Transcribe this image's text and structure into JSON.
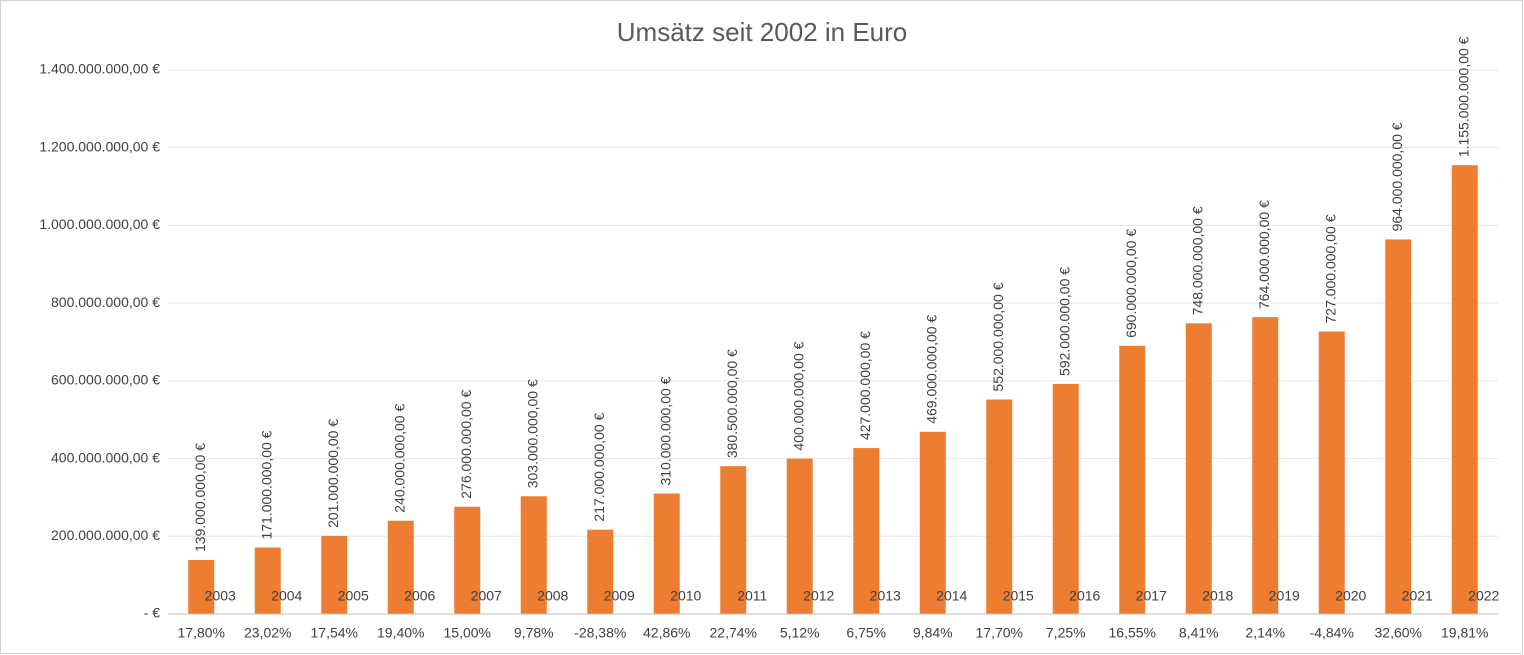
{
  "chart_data": {
    "type": "bar",
    "title": "Umsätz seit 2002 in Euro",
    "categories": [
      "2003",
      "2004",
      "2005",
      "2006",
      "2007",
      "2008",
      "2009",
      "2010",
      "2011",
      "2012",
      "2013",
      "2014",
      "2015",
      "2016",
      "2017",
      "2018",
      "2019",
      "2020",
      "2021",
      "2022"
    ],
    "sub_categories": [
      "17,80%",
      "23,02%",
      "17,54%",
      "19,40%",
      "15,00%",
      "9,78%",
      "-28,38%",
      "42,86%",
      "22,74%",
      "5,12%",
      "6,75%",
      "9,84%",
      "17,70%",
      "7,25%",
      "16,55%",
      "8,41%",
      "2,14%",
      "-4,84%",
      "32,60%",
      "19,81%"
    ],
    "values": [
      139000000,
      171000000,
      201000000,
      240000000,
      276000000,
      303000000,
      217000000,
      310000000,
      380500000,
      400000000,
      427000000,
      469000000,
      552000000,
      592000000,
      690000000,
      748000000,
      764000000,
      727000000,
      964000000,
      1155000000
    ],
    "value_labels": [
      "139.000.000,00 €",
      "171.000.000,00 €",
      "201.000.000,00 €",
      "240.000.000,00 €",
      "276.000.000,00 €",
      "303.000.000,00 €",
      "217.000.000,00 €",
      "310.000.000,00 €",
      "380.500.000,00 €",
      "400.000.000,00 €",
      "427.000.000,00 €",
      "469.000.000,00 €",
      "552.000.000,00 €",
      "592.000.000,00 €",
      "690.000.000,00 €",
      "748.000.000,00 €",
      "764.000.000,00 €",
      "727.000.000,00 €",
      "964.000.000,00 €",
      "1.155.000.000,00 €"
    ],
    "color": "#ed7d31",
    "ylim": [
      0,
      1400000000
    ],
    "yticks": [
      {
        "value": 0,
        "label": "-   €"
      },
      {
        "value": 200000000,
        "label": "200.000.000,00 €"
      },
      {
        "value": 400000000,
        "label": "400.000.000,00 €"
      },
      {
        "value": 600000000,
        "label": "600.000.000,00 €"
      },
      {
        "value": 800000000,
        "label": "800.000.000,00 €"
      },
      {
        "value": 1000000000,
        "label": "1.000.000.000,00 €"
      },
      {
        "value": 1200000000,
        "label": "1.200.000.000,00 €"
      },
      {
        "value": 1400000000,
        "label": "1.400.000.000,00 €"
      }
    ],
    "grid": true
  }
}
